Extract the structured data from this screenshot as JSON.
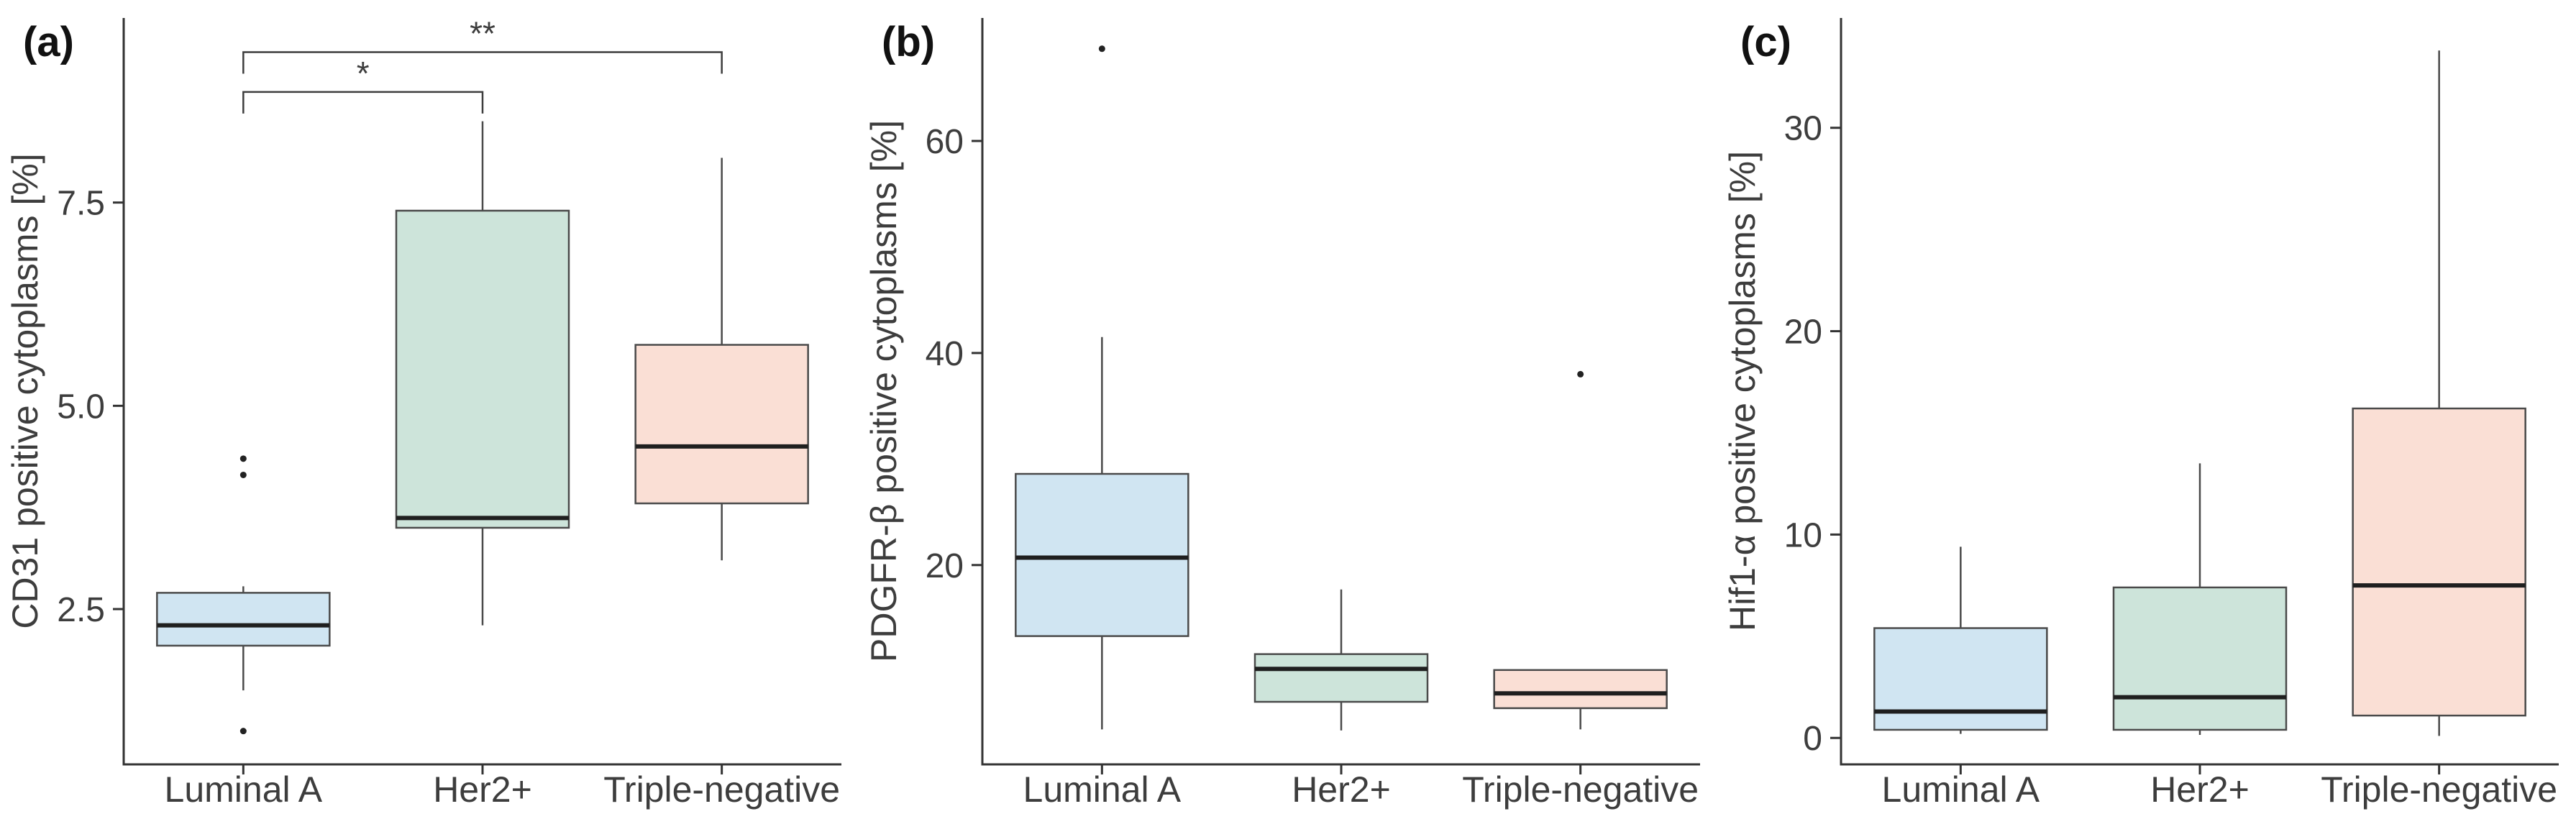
{
  "figure_title": "",
  "style": {
    "background": "#ffffff",
    "axis_color": "#333333",
    "text_color": "#3d3d3d",
    "box_border_color": "#4a4a4a",
    "median_color": "#1f1f1f",
    "whisker_color": "#4a4a4a",
    "bracket_color": "#3d3d3d",
    "blue_fill": "#d0e5f2",
    "green_fill": "#cde4da",
    "pink_fill": "#fadfd5"
  },
  "chart_data": [
    {
      "type": "boxplot",
      "panel_label": "(a)",
      "ylabel": "CD31 positive cytoplasms [%]",
      "xlabel": "",
      "grid": false,
      "legend": "none",
      "ylim": [
        0.59,
        9.77
      ],
      "yticks": [
        {
          "value": 2.5,
          "label": "2.5"
        },
        {
          "value": 5.0,
          "label": "5.0"
        },
        {
          "value": 7.5,
          "label": "7.5"
        }
      ],
      "categories": [
        "Luminal A",
        "Her2+",
        "Triple-negative"
      ],
      "boxes": [
        {
          "category": "Luminal A",
          "fill": "#d0e5f2",
          "whisker_low": 1.5,
          "q1": 2.05,
          "median": 2.3,
          "q3": 2.7,
          "whisker_high": 2.78,
          "outliers": [
            4.35,
            4.15,
            1.0
          ]
        },
        {
          "category": "Her2+",
          "fill": "#cde4da",
          "whisker_low": 2.3,
          "q1": 3.5,
          "median": 3.62,
          "q3": 7.4,
          "whisker_high": 8.5,
          "outliers": []
        },
        {
          "category": "Triple-negative",
          "fill": "#fadfd5",
          "whisker_low": 3.1,
          "q1": 3.8,
          "median": 4.5,
          "q3": 5.75,
          "whisker_high": 8.05,
          "outliers": []
        }
      ],
      "significance": [
        {
          "from": 0,
          "to": 1,
          "label": "*",
          "y": 8.86
        },
        {
          "from": 0,
          "to": 2,
          "label": "**",
          "y": 9.35
        }
      ]
    },
    {
      "type": "boxplot",
      "panel_label": "(b)",
      "ylabel": "PDGFR-β positive cytoplasms [%]",
      "xlabel": "",
      "grid": false,
      "legend": "none",
      "ylim": [
        1.2,
        71.6
      ],
      "yticks": [
        {
          "value": 20,
          "label": "20"
        },
        {
          "value": 40,
          "label": "40"
        },
        {
          "value": 60,
          "label": "60"
        }
      ],
      "categories": [
        "Luminal A",
        "Her2+",
        "Triple-negative"
      ],
      "boxes": [
        {
          "category": "Luminal A",
          "fill": "#d0e5f2",
          "whisker_low": 4.5,
          "q1": 13.3,
          "median": 20.7,
          "q3": 28.6,
          "whisker_high": 41.5,
          "outliers": [
            68.7
          ]
        },
        {
          "category": "Her2+",
          "fill": "#cde4da",
          "whisker_low": 4.4,
          "q1": 7.1,
          "median": 10.2,
          "q3": 11.6,
          "whisker_high": 17.7,
          "outliers": []
        },
        {
          "category": "Triple-negative",
          "fill": "#fadfd5",
          "whisker_low": 4.5,
          "q1": 6.5,
          "median": 7.9,
          "q3": 10.1,
          "whisker_high": 10.1,
          "outliers": [
            38.0
          ]
        }
      ],
      "significance": []
    },
    {
      "type": "boxplot",
      "panel_label": "(c)",
      "ylabel": "Hif1-α positive cytoplasms [%]",
      "xlabel": "",
      "grid": false,
      "legend": "none",
      "ylim": [
        -1.3,
        35.4
      ],
      "yticks": [
        {
          "value": 0,
          "label": "0"
        },
        {
          "value": 10,
          "label": "10"
        },
        {
          "value": 20,
          "label": "20"
        },
        {
          "value": 30,
          "label": "30"
        }
      ],
      "categories": [
        "Luminal A",
        "Her2+",
        "Triple-negative"
      ],
      "boxes": [
        {
          "category": "Luminal A",
          "fill": "#d0e5f2",
          "whisker_low": 0.2,
          "q1": 0.4,
          "median": 1.3,
          "q3": 5.4,
          "whisker_high": 9.4,
          "outliers": []
        },
        {
          "category": "Her2+",
          "fill": "#cde4da",
          "whisker_low": 0.15,
          "q1": 0.4,
          "median": 2.0,
          "q3": 7.4,
          "whisker_high": 13.5,
          "outliers": []
        },
        {
          "category": "Triple-negative",
          "fill": "#fadfd5",
          "whisker_low": 0.1,
          "q1": 1.1,
          "median": 7.5,
          "q3": 16.2,
          "whisker_high": 33.8,
          "outliers": []
        }
      ],
      "significance": []
    }
  ]
}
